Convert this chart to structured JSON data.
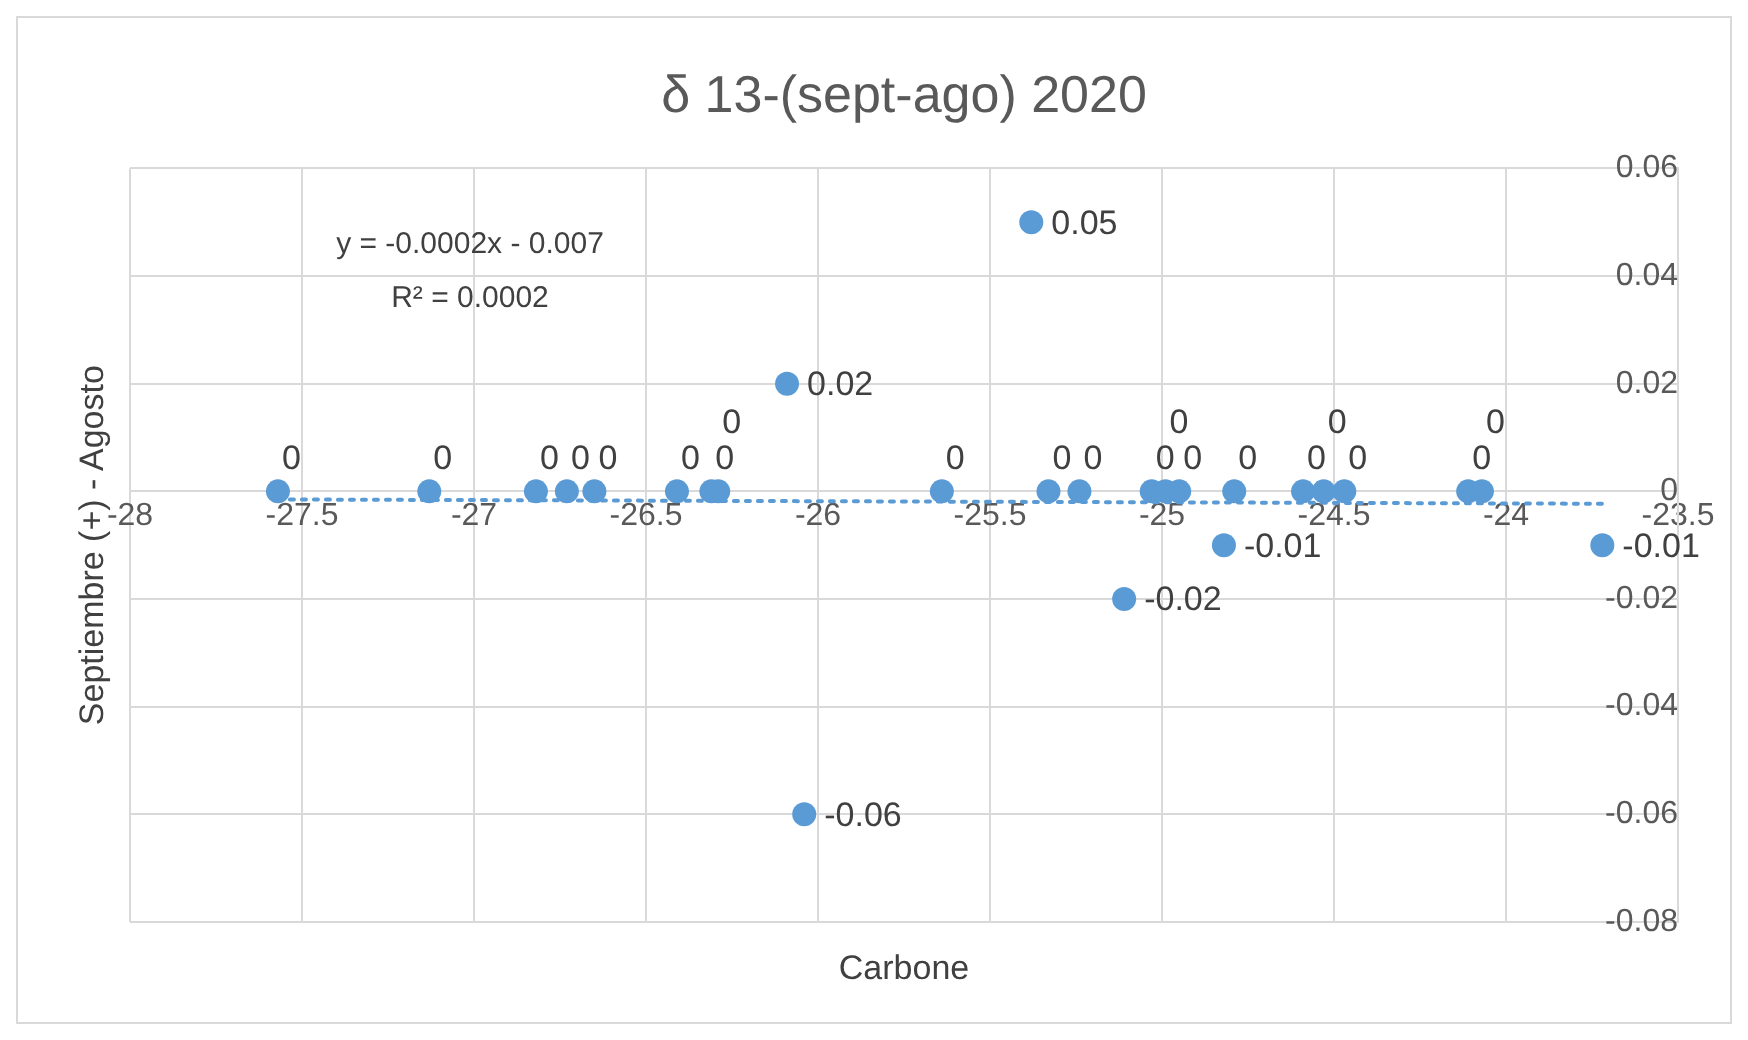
{
  "chart_data": {
    "type": "scatter",
    "title": "δ 13-(sept-ago) 2020",
    "xlabel": "Carbone",
    "ylabel": "Septiembre (+) - Agosto",
    "annotations": [
      "y = -0.0002x - 0.007",
      "R² = 0.0002"
    ],
    "series": [
      {
        "color": "#5b9bd5",
        "x": [
          -27.57,
          -27.13,
          -26.82,
          -26.73,
          -26.65,
          -26.41,
          -26.31,
          -26.29,
          -26.09,
          -26.04,
          -25.64,
          -25.38,
          -25.33,
          -25.24,
          -25.11,
          -25.03,
          -24.99,
          -24.95,
          -24.82,
          -24.79,
          -24.59,
          -24.53,
          -24.47,
          -24.11,
          -24.07,
          -23.72
        ],
        "values": [
          0,
          0,
          0,
          0,
          0,
          0,
          0,
          0,
          0.02,
          -0.06,
          0,
          0.05,
          0,
          0,
          -0.02,
          0,
          0,
          0,
          -0.01,
          0,
          0,
          0,
          0,
          0,
          0,
          -0.01
        ],
        "value_labels": [
          "0",
          "0",
          "0",
          "0",
          "0",
          "0",
          "0",
          "0",
          "0.02",
          "-0.06",
          "0",
          "0.05",
          "0",
          "0",
          "-0.02",
          "0",
          "0",
          "0",
          "-0.01",
          "0",
          "0",
          "0",
          "0",
          "0",
          "0",
          "-0.01"
        ]
      },
      {
        "type": "line",
        "color": "#5b9bd5",
        "line_style": "dotted",
        "marker": "none",
        "x": [
          -27.57,
          -23.72
        ],
        "values": [
          -0.0015,
          -0.0023
        ]
      }
    ],
    "marker": "circle",
    "grid": true,
    "legend": false,
    "xlim": [
      -28,
      -23.5
    ],
    "xticks": [
      -28,
      -27.5,
      -27,
      -26.5,
      -26,
      -25.5,
      -25,
      -24.5,
      -24,
      -23.5
    ],
    "ylim": [
      -0.08,
      0.06
    ],
    "yticks": [
      -0.08,
      -0.06,
      -0.04,
      -0.02,
      0,
      0.02,
      0.04,
      0.06
    ]
  }
}
